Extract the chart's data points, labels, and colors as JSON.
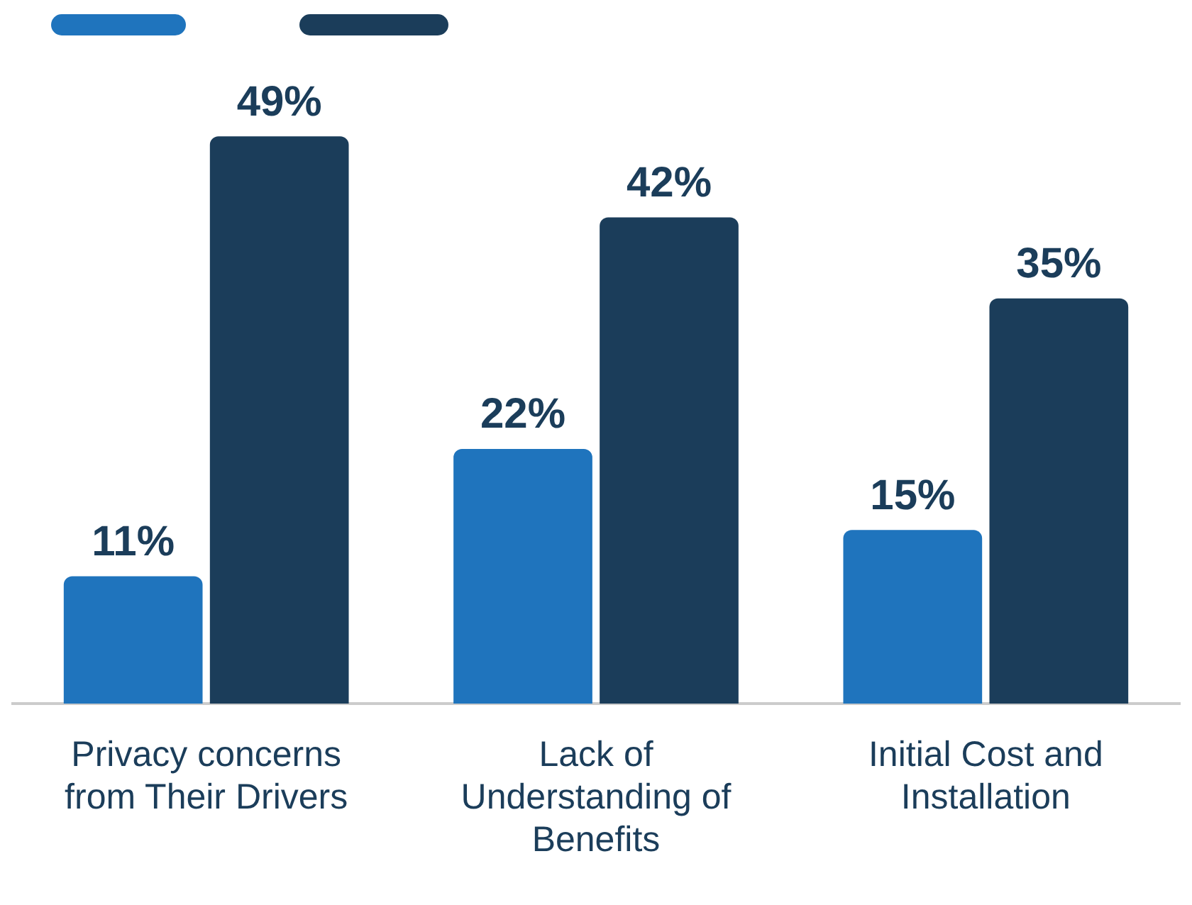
{
  "chart_data": {
    "type": "bar",
    "categories": [
      "Privacy concerns from Their Drivers",
      "Lack of Understanding of Benefits",
      "Initial Cost and Installation"
    ],
    "series": [
      {
        "color": "#1f74bd",
        "values": [
          11,
          22,
          15
        ],
        "value_labels": [
          "11%",
          "22%",
          "15%"
        ]
      },
      {
        "color": "#1b3d5a",
        "values": [
          49,
          42,
          35
        ],
        "value_labels": [
          "49%",
          "42%",
          "35%"
        ]
      }
    ],
    "grid": false
  }
}
